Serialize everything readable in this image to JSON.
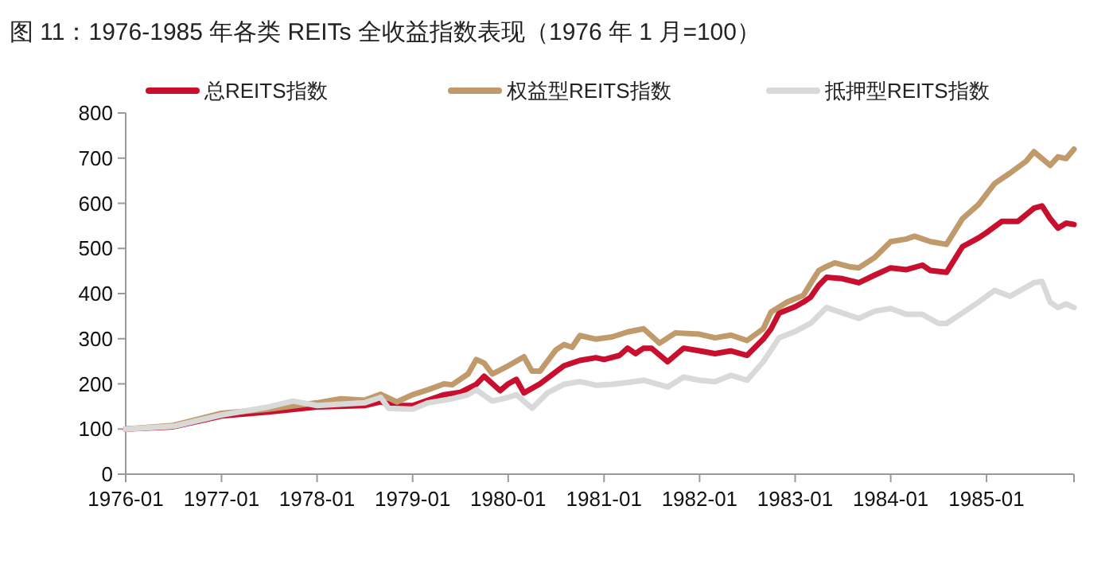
{
  "chart_data": {
    "type": "line",
    "title": "图 11：1976-1985 年各类 REITs 全收益指数表现（1976 年 1 月=100）",
    "xlim": [
      "1976-01",
      "1985-12"
    ],
    "xticks": [
      "1976-01",
      "1977-01",
      "1978-01",
      "1979-01",
      "1980-01",
      "1981-01",
      "1982-01",
      "1983-01",
      "1984-01",
      "1985-01"
    ],
    "ylim": [
      0,
      800
    ],
    "yticks": [
      0,
      100,
      200,
      300,
      400,
      500,
      600,
      700,
      800
    ],
    "grid": false,
    "legend": "top",
    "marker": "none",
    "line_style": "solid",
    "series": [
      {
        "name": "总REITS指数",
        "color": "#c8102e",
        "x": [
          "1976-01",
          "1976-07",
          "1977-01",
          "1977-07",
          "1978-01",
          "1978-07",
          "1978-09",
          "1978-11",
          "1979-01",
          "1979-03",
          "1979-05",
          "1979-07",
          "1979-09",
          "1979-10",
          "1979-12",
          "1980-01",
          "1980-02",
          "1980-03",
          "1980-05",
          "1980-08",
          "1980-10",
          "1980-12",
          "1981-01",
          "1981-03",
          "1981-04",
          "1981-05",
          "1981-06",
          "1981-07",
          "1981-09",
          "1981-11",
          "1982-01",
          "1982-03",
          "1982-05",
          "1982-07",
          "1982-09",
          "1982-10",
          "1982-11",
          "1983-01",
          "1983-02",
          "1983-03",
          "1983-04",
          "1983-05",
          "1983-07",
          "1983-09",
          "1983-11",
          "1984-01",
          "1984-03",
          "1984-05",
          "1984-06",
          "1984-08",
          "1984-10",
          "1984-12",
          "1985-01",
          "1985-03",
          "1985-05",
          "1985-07",
          "1985-08",
          "1985-09",
          "1985-10",
          "1985-11",
          "1985-12"
        ],
        "values": [
          100,
          105,
          129,
          138,
          149,
          152,
          160,
          152,
          152,
          164,
          176,
          181,
          199,
          217,
          185,
          200,
          210,
          180,
          200,
          240,
          252,
          258,
          254,
          263,
          279,
          267,
          279,
          279,
          249,
          279,
          273,
          267,
          273,
          263,
          299,
          322,
          357,
          371,
          381,
          392,
          418,
          436,
          433,
          424,
          441,
          457,
          453,
          463,
          451,
          447,
          504,
          523,
          535,
          560,
          560,
          589,
          594,
          566,
          545,
          556,
          553
        ]
      },
      {
        "name": "权益型REITS指数",
        "color": "#c09a6b",
        "x": [
          "1976-01",
          "1976-07",
          "1977-01",
          "1977-07",
          "1978-01",
          "1978-04",
          "1978-07",
          "1978-09",
          "1978-11",
          "1979-01",
          "1979-03",
          "1979-05",
          "1979-06",
          "1979-08",
          "1979-09",
          "1979-10",
          "1979-11",
          "1980-01",
          "1980-03",
          "1980-04",
          "1980-05",
          "1980-07",
          "1980-08",
          "1980-09",
          "1980-10",
          "1980-12",
          "1981-02",
          "1981-04",
          "1981-06",
          "1981-08",
          "1981-10",
          "1982-01",
          "1982-03",
          "1982-05",
          "1982-07",
          "1982-09",
          "1982-10",
          "1982-12",
          "1983-02",
          "1983-04",
          "1983-05",
          "1983-06",
          "1983-08",
          "1983-09",
          "1983-11",
          "1984-01",
          "1984-03",
          "1984-04",
          "1984-06",
          "1984-08",
          "1984-10",
          "1984-12",
          "1985-02",
          "1985-04",
          "1985-06",
          "1985-07",
          "1985-09",
          "1985-10",
          "1985-11",
          "1985-12"
        ],
        "values": [
          100,
          108,
          135,
          144,
          158,
          167,
          164,
          177,
          160,
          176,
          187,
          200,
          198,
          222,
          254,
          246,
          222,
          240,
          260,
          228,
          228,
          275,
          287,
          281,
          307,
          299,
          304,
          315,
          322,
          290,
          313,
          310,
          302,
          308,
          296,
          322,
          359,
          381,
          396,
          451,
          460,
          468,
          459,
          457,
          480,
          515,
          521,
          527,
          515,
          509,
          566,
          597,
          644,
          667,
          693,
          714,
          684,
          703,
          699,
          720
        ]
      },
      {
        "name": "抵押型REITS指数",
        "color": "#d9d9d9",
        "x": [
          "1976-01",
          "1976-07",
          "1977-01",
          "1977-07",
          "1977-10",
          "1978-01",
          "1978-07",
          "1978-09",
          "1978-10",
          "1979-01",
          "1979-03",
          "1979-06",
          "1979-08",
          "1979-09",
          "1979-11",
          "1980-01",
          "1980-02",
          "1980-04",
          "1980-06",
          "1980-08",
          "1980-10",
          "1980-12",
          "1981-02",
          "1981-04",
          "1981-06",
          "1981-09",
          "1981-11",
          "1982-01",
          "1982-03",
          "1982-05",
          "1982-07",
          "1982-09",
          "1982-11",
          "1983-01",
          "1983-03",
          "1983-05",
          "1983-07",
          "1983-09",
          "1983-11",
          "1984-01",
          "1984-03",
          "1984-05",
          "1984-07",
          "1984-08",
          "1984-10",
          "1984-12",
          "1985-02",
          "1985-04",
          "1985-07",
          "1985-08",
          "1985-09",
          "1985-10",
          "1985-11",
          "1985-12"
        ],
        "values": [
          100,
          106,
          131,
          149,
          162,
          152,
          158,
          170,
          146,
          144,
          158,
          167,
          176,
          187,
          162,
          170,
          176,
          146,
          181,
          199,
          205,
          197,
          199,
          203,
          208,
          193,
          215,
          208,
          205,
          219,
          208,
          249,
          302,
          316,
          334,
          369,
          357,
          345,
          361,
          367,
          354,
          354,
          334,
          334,
          357,
          381,
          407,
          394,
          424,
          427,
          381,
          369,
          377,
          369
        ]
      }
    ]
  }
}
